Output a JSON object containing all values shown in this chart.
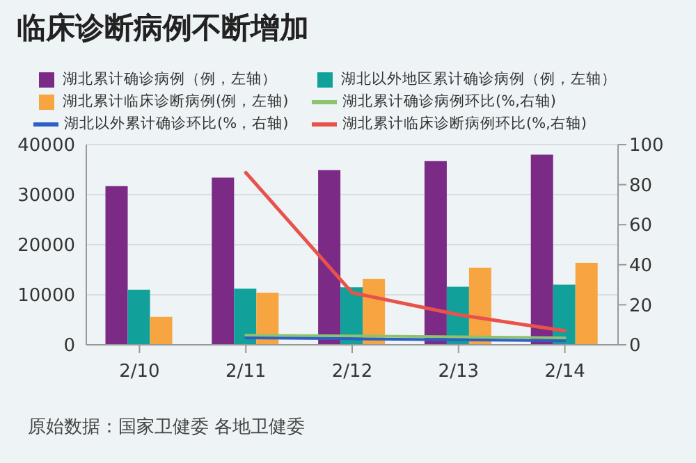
{
  "chart_data": {
    "type": "bar",
    "title": "临床诊断病例不断增加",
    "categories": [
      "2/10",
      "2/11",
      "2/12",
      "2/13",
      "2/14"
    ],
    "series": [
      {
        "name": "湖北累计确诊病例（例，左轴）",
        "color": "#7b2a86",
        "values": [
          31700,
          33400,
          34900,
          36700,
          38000
        ]
      },
      {
        "name": "湖北以外地区累计确诊病例（例，左轴）",
        "color": "#12a09a",
        "values": [
          11000,
          11200,
          11500,
          11600,
          12000
        ]
      },
      {
        "name": "湖北累计临床诊断病例(例，左轴)",
        "color": "#f7a541",
        "values": [
          5600,
          10400,
          13200,
          15400,
          16400
        ]
      },
      {
        "name": "湖北累计确诊病例环比(%,右轴)",
        "type": "line",
        "axis": "y2",
        "color": "#8dc26f",
        "values": [
          null,
          4.8,
          4.4,
          4.0,
          3.5
        ]
      },
      {
        "name": "湖北以外累计确诊环比(%，右轴)",
        "type": "line",
        "axis": "y2",
        "color": "#2f5fc4",
        "values": [
          null,
          3.5,
          3.0,
          2.5,
          2.0
        ]
      },
      {
        "name": "湖北累计临床诊断病例环比(%,右轴)",
        "type": "line",
        "axis": "y2",
        "color": "#e8524a",
        "values": [
          null,
          86,
          26,
          15,
          7
        ]
      }
    ],
    "ylim": [
      0,
      40000
    ],
    "yticks": [
      0,
      10000,
      20000,
      30000,
      40000
    ],
    "y2lim": [
      0,
      100
    ],
    "y2ticks": [
      0,
      20,
      40,
      60,
      80,
      100
    ],
    "grid": "y",
    "legend": "top",
    "annotations": [
      "原始数据：国家卫健委 各地卫健委"
    ]
  }
}
